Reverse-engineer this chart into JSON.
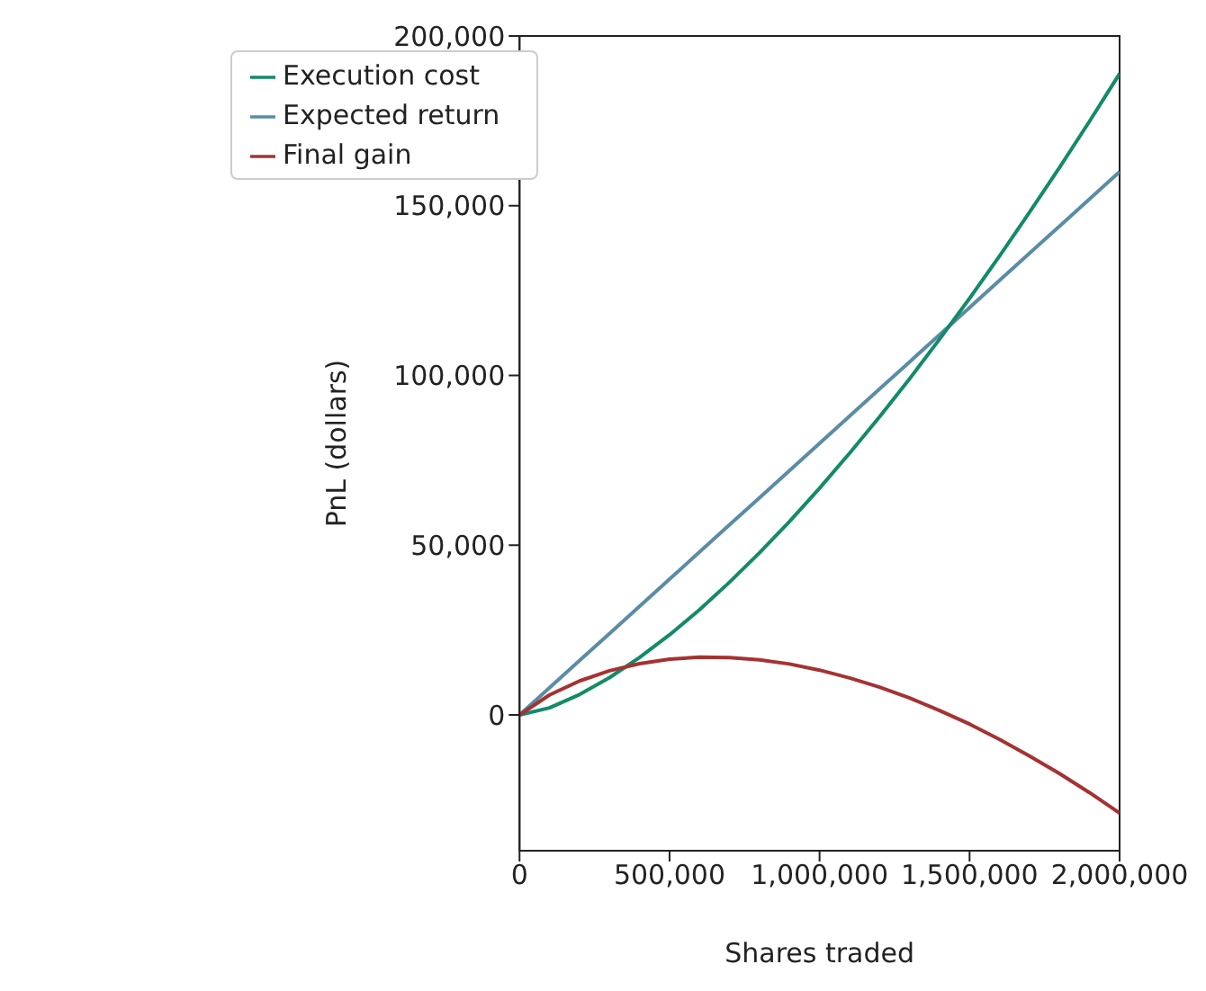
{
  "chart_data": {
    "type": "line",
    "xlabel": "Shares traded",
    "ylabel": "PnL (dollars)",
    "x": [
      0,
      100000,
      200000,
      300000,
      400000,
      500000,
      600000,
      700000,
      800000,
      900000,
      1000000,
      1100000,
      1200000,
      1300000,
      1400000,
      1500000,
      1600000,
      1700000,
      1800000,
      1900000,
      2000000
    ],
    "series": [
      {
        "name": "Expected return",
        "color": "#5a8ca6",
        "values": [
          0,
          8000,
          16000,
          24000,
          32000,
          40000,
          48000,
          56000,
          64000,
          72000,
          80000,
          88000,
          96000,
          104000,
          112000,
          120000,
          128000,
          136000,
          144000,
          152000,
          160000
        ]
      },
      {
        "name": "Execution cost",
        "color": "#138a68",
        "values": [
          0,
          2100,
          6000,
          11000,
          16900,
          23600,
          31000,
          39100,
          47800,
          57000,
          66800,
          77100,
          87800,
          99000,
          110700,
          122700,
          135200,
          148100,
          161300,
          174900,
          188900
        ]
      },
      {
        "name": "Final gain",
        "color": "#a53232",
        "values": [
          0,
          5900,
          10000,
          13000,
          15100,
          16400,
          17000,
          16900,
          16200,
          15000,
          13200,
          10900,
          8200,
          5000,
          1300,
          -2700,
          -7200,
          -12100,
          -17300,
          -22900,
          -28900
        ]
      }
    ],
    "xlim": [
      0,
      2000000
    ],
    "xticks": [
      0,
      {
        "value": 500000,
        "label": "500,000"
      },
      {
        "value": 1000000,
        "label": "1,000,000"
      },
      {
        "value": 1500000,
        "label": "1,500,000"
      },
      {
        "value": 2000000,
        "label": "2,000,000"
      }
    ],
    "ylim": [
      -40000,
      200000
    ],
    "yticks": [
      0,
      {
        "value": 50000,
        "label": "50,000"
      },
      {
        "value": 100000,
        "label": "100,000"
      },
      {
        "value": 150000,
        "label": "150,000"
      },
      {
        "value": 200000,
        "label": "200,000"
      }
    ],
    "legend": "top left",
    "line_style": "solid"
  }
}
